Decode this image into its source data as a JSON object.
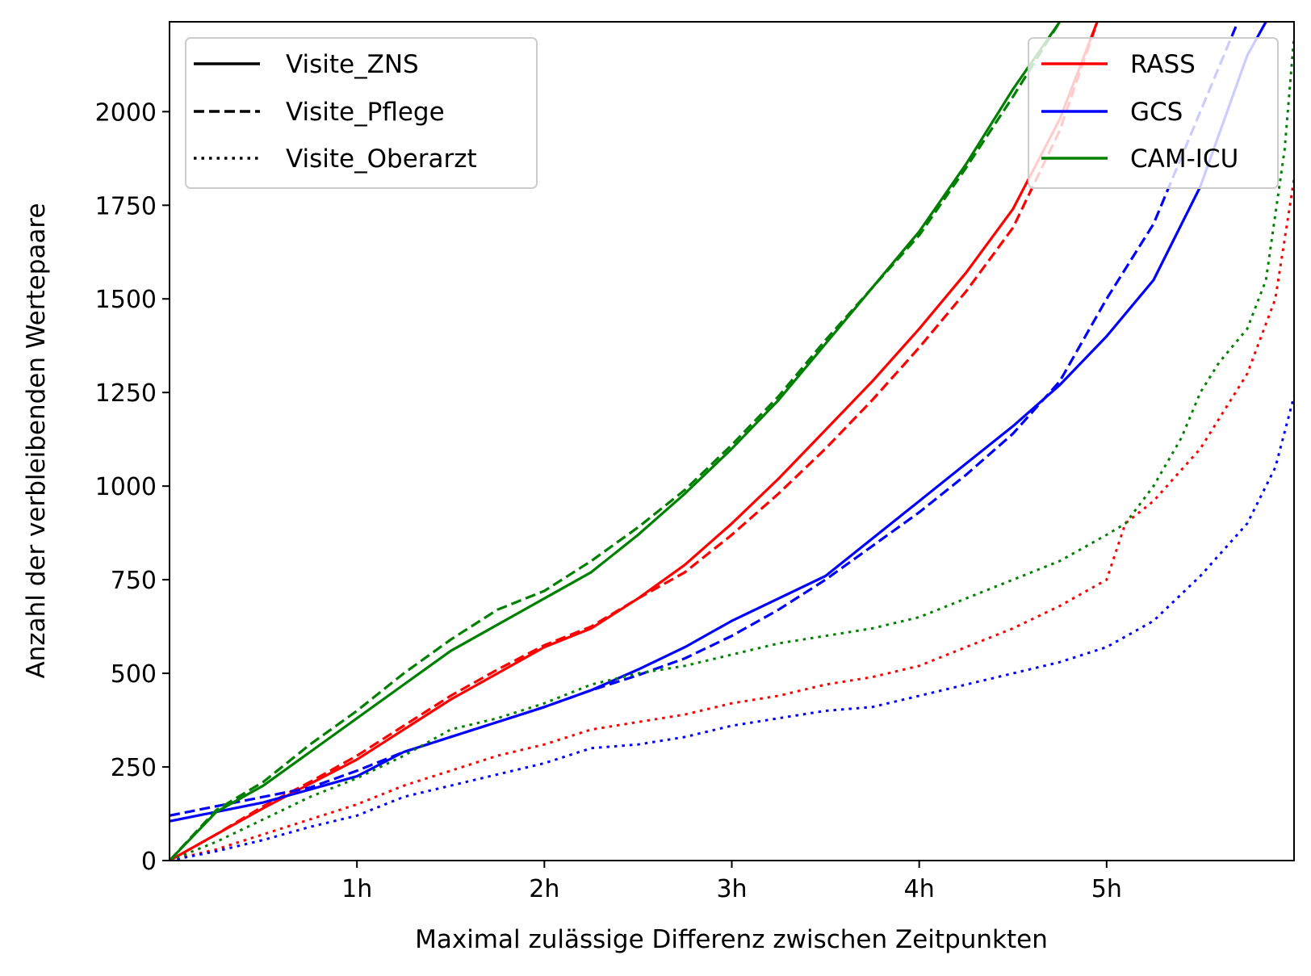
{
  "chart_data": {
    "type": "line",
    "title": "",
    "xlabel": "Maximal zulässige Differenz zwischen Zeitpunkten",
    "ylabel": "Anzahl der verbleibenden Wertepaare",
    "xlim_hours": [
      0,
      6
    ],
    "ylim": [
      0,
      2240
    ],
    "x_ticks": [
      {
        "value": 1,
        "label": "1h"
      },
      {
        "value": 2,
        "label": "2h"
      },
      {
        "value": 3,
        "label": "3h"
      },
      {
        "value": 4,
        "label": "4h"
      },
      {
        "value": 5,
        "label": "5h"
      }
    ],
    "y_ticks": [
      {
        "value": 0,
        "label": "0"
      },
      {
        "value": 250,
        "label": "250"
      },
      {
        "value": 500,
        "label": "500"
      },
      {
        "value": 750,
        "label": "750"
      },
      {
        "value": 1000,
        "label": "1000"
      },
      {
        "value": 1250,
        "label": "1250"
      },
      {
        "value": 1500,
        "label": "1500"
      },
      {
        "value": 1750,
        "label": "1750"
      },
      {
        "value": 2000,
        "label": "2000"
      }
    ],
    "grid": false,
    "legend_styles": {
      "placement": "top-left",
      "entries": [
        {
          "label": "Visite_ZNS",
          "dash": "solid"
        },
        {
          "label": "Visite_Pflege",
          "dash": "dashed"
        },
        {
          "label": "Visite_Oberarzt",
          "dash": "dotted"
        }
      ]
    },
    "legend_colors": {
      "placement": "top-right",
      "entries": [
        {
          "label": "RASS",
          "color": "#ff0000"
        },
        {
          "label": "GCS",
          "color": "#0000ff"
        },
        {
          "label": "CAM-ICU",
          "color": "#008000"
        }
      ]
    },
    "series": [
      {
        "measure": "RASS",
        "visit": "Visite_ZNS",
        "color": "#ff0000",
        "dash": "solid",
        "x": [
          0,
          0.25,
          0.5,
          0.75,
          1.0,
          1.25,
          1.5,
          1.75,
          2.0,
          2.25,
          2.5,
          2.75,
          3.0,
          3.25,
          3.5,
          3.75,
          4.0,
          4.25,
          4.5,
          4.75,
          4.95
        ],
        "y": [
          0,
          70,
          140,
          205,
          270,
          350,
          430,
          500,
          570,
          620,
          700,
          790,
          900,
          1020,
          1150,
          1280,
          1420,
          1570,
          1740,
          1980,
          2240
        ]
      },
      {
        "measure": "RASS",
        "visit": "Visite_Pflege",
        "color": "#ff0000",
        "dash": "dashed",
        "x": [
          0,
          0.25,
          0.5,
          0.75,
          1.0,
          1.25,
          1.5,
          1.75,
          2.0,
          2.25,
          2.5,
          2.75,
          3.0,
          3.25,
          3.5,
          3.75,
          4.0,
          4.25,
          4.5,
          4.75,
          4.95
        ],
        "y": [
          0,
          70,
          145,
          210,
          280,
          360,
          440,
          510,
          575,
          625,
          700,
          770,
          870,
          980,
          1100,
          1230,
          1370,
          1520,
          1690,
          1950,
          2240
        ]
      },
      {
        "measure": "RASS",
        "visit": "Visite_Oberarzt",
        "color": "#ff0000",
        "dash": "dotted",
        "x": [
          0,
          0.25,
          0.5,
          0.75,
          1.0,
          1.25,
          1.5,
          1.75,
          2.0,
          2.25,
          2.5,
          2.75,
          3.0,
          3.25,
          3.5,
          3.75,
          4.0,
          4.25,
          4.5,
          4.75,
          5.0,
          5.1,
          5.25,
          5.5,
          5.75,
          5.9,
          6.0
        ],
        "y": [
          0,
          30,
          70,
          110,
          150,
          200,
          240,
          280,
          310,
          350,
          370,
          390,
          420,
          440,
          470,
          490,
          520,
          570,
          620,
          680,
          750,
          900,
          960,
          1100,
          1300,
          1500,
          1820
        ]
      },
      {
        "measure": "GCS",
        "visit": "Visite_ZNS",
        "color": "#0000ff",
        "dash": "solid",
        "x": [
          0,
          0.25,
          0.5,
          0.75,
          1.0,
          1.25,
          1.5,
          1.75,
          2.0,
          2.25,
          2.5,
          2.75,
          3.0,
          3.25,
          3.5,
          3.75,
          4.0,
          4.25,
          4.5,
          4.75,
          5.0,
          5.25,
          5.5,
          5.75,
          5.85
        ],
        "y": [
          105,
          130,
          155,
          190,
          225,
          290,
          330,
          370,
          410,
          455,
          510,
          570,
          640,
          700,
          760,
          860,
          960,
          1060,
          1160,
          1270,
          1400,
          1550,
          1800,
          2150,
          2240
        ]
      },
      {
        "measure": "GCS",
        "visit": "Visite_Pflege",
        "color": "#0000ff",
        "dash": "dashed",
        "x": [
          0,
          0.25,
          0.5,
          0.75,
          1.0,
          1.25,
          1.5,
          1.75,
          2.0,
          2.25,
          2.5,
          2.75,
          3.0,
          3.25,
          3.5,
          3.75,
          4.0,
          4.25,
          4.5,
          4.75,
          5.0,
          5.25,
          5.5,
          5.7
        ],
        "y": [
          120,
          145,
          170,
          195,
          240,
          290,
          330,
          370,
          410,
          455,
          495,
          540,
          600,
          670,
          750,
          840,
          930,
          1030,
          1140,
          1280,
          1500,
          1700,
          2000,
          2240
        ]
      },
      {
        "measure": "GCS",
        "visit": "Visite_Oberarzt",
        "color": "#0000ff",
        "dash": "dotted",
        "x": [
          0,
          0.25,
          0.5,
          0.75,
          1.0,
          1.25,
          1.5,
          1.75,
          2.0,
          2.25,
          2.5,
          2.75,
          3.0,
          3.25,
          3.5,
          3.75,
          4.0,
          4.25,
          4.5,
          4.75,
          5.0,
          5.25,
          5.5,
          5.75,
          5.9,
          6.0
        ],
        "y": [
          0,
          25,
          55,
          90,
          120,
          170,
          200,
          230,
          260,
          300,
          310,
          330,
          360,
          380,
          400,
          410,
          440,
          470,
          500,
          530,
          570,
          640,
          760,
          900,
          1050,
          1240
        ]
      },
      {
        "measure": "CAM-ICU",
        "visit": "Visite_ZNS",
        "color": "#008000",
        "dash": "solid",
        "x": [
          0,
          0.25,
          0.5,
          0.75,
          1.0,
          1.25,
          1.5,
          1.75,
          2.0,
          2.25,
          2.5,
          2.75,
          3.0,
          3.25,
          3.5,
          3.75,
          4.0,
          4.25,
          4.5,
          4.75
        ],
        "y": [
          0,
          130,
          200,
          290,
          380,
          470,
          560,
          630,
          700,
          770,
          870,
          980,
          1100,
          1230,
          1380,
          1530,
          1680,
          1860,
          2060,
          2240
        ]
      },
      {
        "measure": "CAM-ICU",
        "visit": "Visite_Pflege",
        "color": "#008000",
        "dash": "dashed",
        "x": [
          0,
          0.25,
          0.5,
          0.75,
          1.0,
          1.25,
          1.5,
          1.75,
          2.0,
          2.25,
          2.5,
          2.75,
          3.0,
          3.25,
          3.5,
          3.75,
          4.0,
          4.25,
          4.5,
          4.75
        ],
        "y": [
          0,
          135,
          210,
          310,
          400,
          500,
          590,
          670,
          720,
          800,
          890,
          990,
          1110,
          1240,
          1390,
          1530,
          1670,
          1850,
          2040,
          2240
        ]
      },
      {
        "measure": "CAM-ICU",
        "visit": "Visite_Oberarzt",
        "color": "#008000",
        "dash": "dotted",
        "x": [
          0,
          0.25,
          0.5,
          0.75,
          1.0,
          1.25,
          1.5,
          1.75,
          2.0,
          2.25,
          2.5,
          2.75,
          3.0,
          3.25,
          3.5,
          3.75,
          4.0,
          4.25,
          4.5,
          4.75,
          5.0,
          5.1,
          5.25,
          5.4,
          5.5,
          5.6,
          5.75,
          5.85,
          5.95,
          6.0
        ],
        "y": [
          0,
          50,
          110,
          170,
          220,
          280,
          350,
          380,
          420,
          470,
          500,
          520,
          550,
          580,
          600,
          620,
          650,
          700,
          750,
          800,
          870,
          900,
          1000,
          1130,
          1250,
          1330,
          1420,
          1550,
          1900,
          2200
        ]
      }
    ]
  }
}
